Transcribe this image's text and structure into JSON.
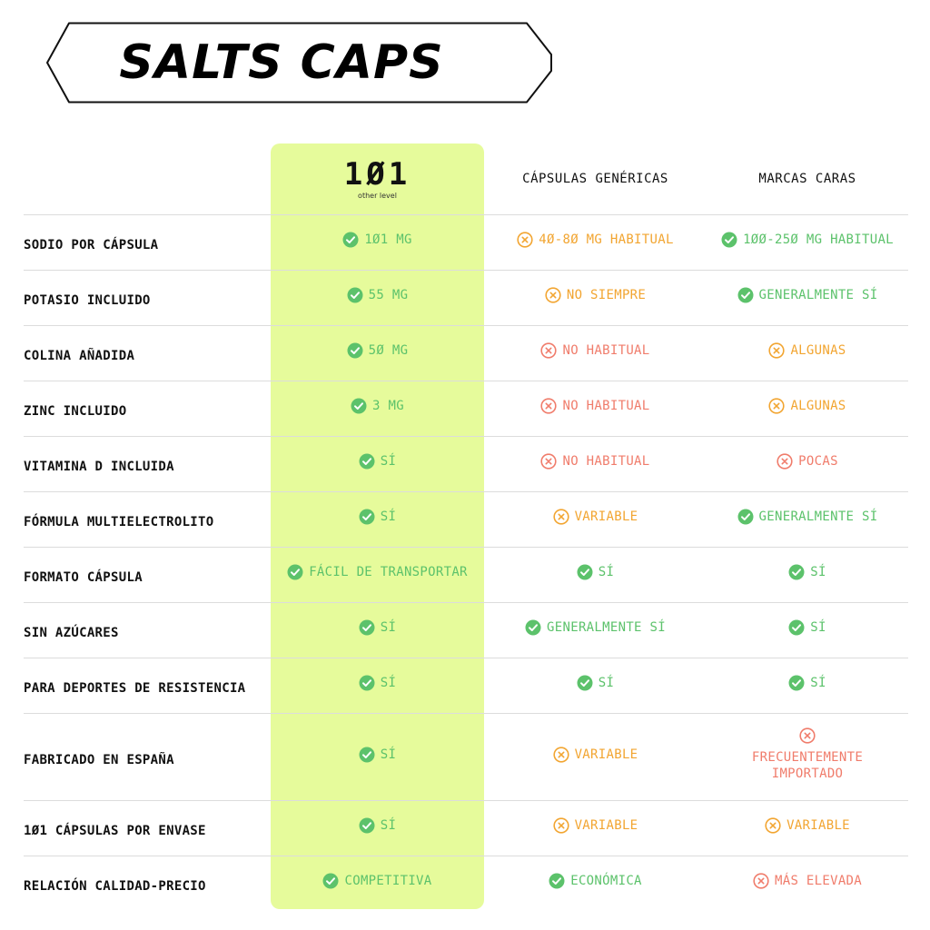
{
  "banner": {
    "title": "SALTS CAPS"
  },
  "header": {
    "brand_logo": "1Ø1",
    "brand_sub": "other level",
    "col2": "CÁPSULAS GENÉRICAS",
    "col3": "MARCAS CARAS"
  },
  "colors": {
    "highlight": "#e6fb9b",
    "ok": "#5cc26b",
    "warn": "#f2a531",
    "bad": "#f07c6b"
  },
  "rows": [
    {
      "label": "SODIO POR CÁPSULA",
      "c1": {
        "text": "1Ø1 MG",
        "status": "ok"
      },
      "c2": {
        "text": "4Ø-8Ø MG HABITUAL",
        "status": "warn"
      },
      "c3": {
        "text": "1ØØ-25Ø MG HABITUAL",
        "status": "ok"
      }
    },
    {
      "label": "POTASIO INCLUIDO",
      "c1": {
        "text": "55 MG",
        "status": "ok"
      },
      "c2": {
        "text": "NO SIEMPRE",
        "status": "warn"
      },
      "c3": {
        "text": "GENERALMENTE SÍ",
        "status": "ok"
      }
    },
    {
      "label": "COLINA AÑADIDA",
      "c1": {
        "text": "5Ø MG",
        "status": "ok"
      },
      "c2": {
        "text": "NO HABITUAL",
        "status": "bad"
      },
      "c3": {
        "text": "ALGUNAS",
        "status": "warn"
      }
    },
    {
      "label": "ZINC INCLUIDO",
      "c1": {
        "text": "3 MG",
        "status": "ok"
      },
      "c2": {
        "text": "NO HABITUAL",
        "status": "bad"
      },
      "c3": {
        "text": "ALGUNAS",
        "status": "warn"
      }
    },
    {
      "label": "VITAMINA D INCLUIDA",
      "c1": {
        "text": "SÍ",
        "status": "ok"
      },
      "c2": {
        "text": "NO HABITUAL",
        "status": "bad"
      },
      "c3": {
        "text": "POCAS",
        "status": "bad"
      }
    },
    {
      "label": "FÓRMULA MULTIELECTROLITO",
      "c1": {
        "text": "SÍ",
        "status": "ok"
      },
      "c2": {
        "text": "VARIABLE",
        "status": "warn"
      },
      "c3": {
        "text": "GENERALMENTE SÍ",
        "status": "ok"
      }
    },
    {
      "label": "FORMATO CÁPSULA",
      "c1": {
        "text": "FÁCIL DE TRANSPORTAR",
        "status": "ok"
      },
      "c2": {
        "text": "SÍ",
        "status": "ok"
      },
      "c3": {
        "text": "SÍ",
        "status": "ok"
      }
    },
    {
      "label": "SIN AZÚCARES",
      "c1": {
        "text": "SÍ",
        "status": "ok"
      },
      "c2": {
        "text": "GENERALMENTE SÍ",
        "status": "ok"
      },
      "c3": {
        "text": "SÍ",
        "status": "ok"
      }
    },
    {
      "label": "PARA DEPORTES DE RESISTENCIA",
      "c1": {
        "text": "SÍ",
        "status": "ok"
      },
      "c2": {
        "text": "SÍ",
        "status": "ok"
      },
      "c3": {
        "text": "SÍ",
        "status": "ok"
      }
    },
    {
      "label": "FABRICADO EN ESPAÑA",
      "c1": {
        "text": "SÍ",
        "status": "ok"
      },
      "c2": {
        "text": "VARIABLE",
        "status": "warn"
      },
      "c3": {
        "text": "FRECUENTEMENTE IMPORTADO",
        "status": "bad",
        "stacked": true
      }
    },
    {
      "label": "1Ø1 CÁPSULAS POR ENVASE",
      "c1": {
        "text": "SÍ",
        "status": "ok"
      },
      "c2": {
        "text": "VARIABLE",
        "status": "warn"
      },
      "c3": {
        "text": "VARIABLE",
        "status": "warn"
      }
    },
    {
      "label": "RELACIÓN CALIDAD-PRECIO",
      "c1": {
        "text": "COMPETITIVA",
        "status": "ok"
      },
      "c2": {
        "text": "ECONÓMICA",
        "status": "ok"
      },
      "c3": {
        "text": "MÁS ELEVADA",
        "status": "bad"
      }
    }
  ]
}
